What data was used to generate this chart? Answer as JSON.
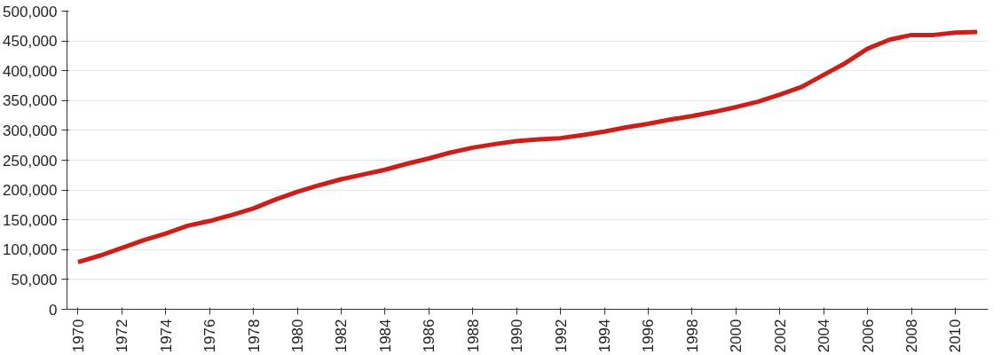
{
  "chart_data": {
    "type": "line",
    "x": [
      1970,
      1971,
      1972,
      1973,
      1974,
      1975,
      1976,
      1977,
      1978,
      1979,
      1980,
      1981,
      1982,
      1983,
      1984,
      1985,
      1986,
      1987,
      1988,
      1989,
      1990,
      1991,
      1992,
      1993,
      1994,
      1995,
      1996,
      1997,
      1998,
      1999,
      2000,
      2001,
      2002,
      2003,
      2004,
      2005,
      2006,
      2007,
      2008,
      2009,
      2010,
      2011
    ],
    "series": [
      {
        "color": "#cc1f1a",
        "values": [
          79000,
          90000,
          103000,
          116000,
          127000,
          140000,
          148000,
          158000,
          169000,
          184000,
          197000,
          208000,
          218000,
          226000,
          234000,
          244000,
          253000,
          263000,
          271000,
          277000,
          282000,
          285000,
          287000,
          292000,
          298000,
          305000,
          311000,
          318000,
          324000,
          331000,
          339000,
          348000,
          360000,
          373000,
          393000,
          413000,
          437000,
          452000,
          460000,
          460000,
          464000,
          465000
        ]
      }
    ],
    "xlim": [
      1969.5,
      2011.5
    ],
    "xticks": [
      1970,
      1972,
      1974,
      1976,
      1978,
      1980,
      1982,
      1984,
      1986,
      1988,
      1990,
      1992,
      1994,
      1996,
      1998,
      2000,
      2002,
      2004,
      2006,
      2008,
      2010
    ],
    "ylim": [
      0,
      500000
    ],
    "yticks": [
      {
        "value": 0,
        "label": "0"
      },
      {
        "value": 50000,
        "label": "50,000"
      },
      {
        "value": 100000,
        "label": "100,000"
      },
      {
        "value": 150000,
        "label": "150,000"
      },
      {
        "value": 200000,
        "label": "200,000"
      },
      {
        "value": 250000,
        "label": "250,000"
      },
      {
        "value": 300000,
        "label": "300,000"
      },
      {
        "value": 350000,
        "label": "350,000"
      },
      {
        "value": 400000,
        "label": "400,000"
      },
      {
        "value": 450000,
        "label": "450,000"
      },
      {
        "value": 500000,
        "label": "500,000"
      }
    ],
    "grid": "y",
    "marker": "none",
    "line_style": "solid"
  }
}
